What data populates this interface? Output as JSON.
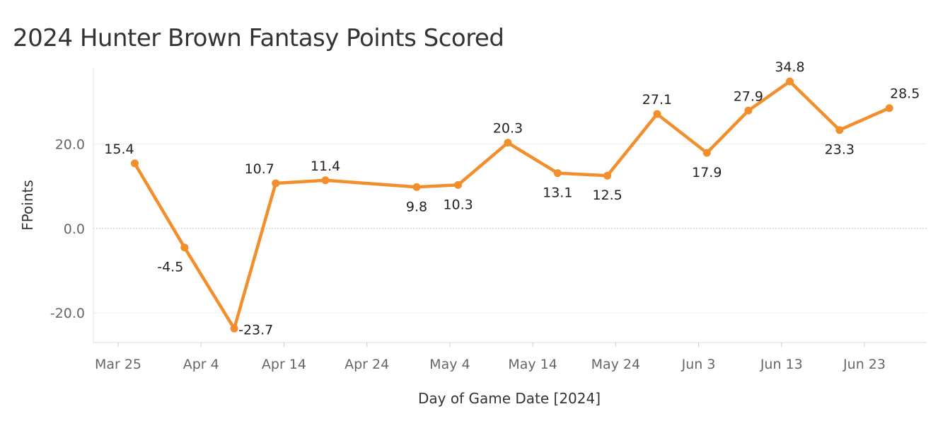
{
  "chart_data": {
    "type": "line",
    "title": "2024 Hunter Brown Fantasy Points Scored",
    "xlabel": "Day of Game Date [2024]",
    "ylabel": "FPoints",
    "x_tick_labels": [
      "Mar 25",
      "Apr 4",
      "Apr 14",
      "Apr 24",
      "May 4",
      "May 14",
      "May 24",
      "Jun 3",
      "Jun 13",
      "Jun 23"
    ],
    "y_tick_labels": [
      "20.0",
      "0.0",
      "-20.0"
    ],
    "y_ticks": [
      20,
      0,
      -20
    ],
    "ylim": [
      -27,
      38
    ],
    "series": [
      {
        "x": [
          "2024-03-27",
          "2024-04-02",
          "2024-04-08",
          "2024-04-13",
          "2024-04-19",
          "2024-04-30",
          "2024-05-05",
          "2024-05-11",
          "2024-05-17",
          "2024-05-23",
          "2024-05-29",
          "2024-06-04",
          "2024-06-09",
          "2024-06-14",
          "2024-06-20",
          "2024-06-26"
        ],
        "values": [
          15.4,
          -4.5,
          -23.7,
          10.7,
          11.4,
          9.8,
          10.3,
          20.3,
          13.1,
          12.5,
          27.1,
          17.9,
          27.9,
          34.8,
          23.3,
          28.5
        ],
        "labels": [
          "15.4",
          "-4.5",
          "-23.7",
          "10.7",
          "11.4",
          "9.8",
          "10.3",
          "20.3",
          "13.1",
          "12.5",
          "27.1",
          "17.9",
          "27.9",
          "34.8",
          "23.3",
          "28.5"
        ]
      }
    ],
    "line_color": "#F28E2B",
    "grid": true,
    "zero_line": "dotted",
    "legend": "none"
  }
}
